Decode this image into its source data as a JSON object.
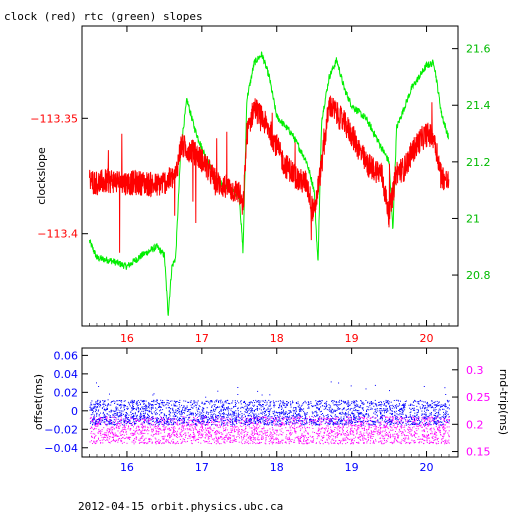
{
  "title": "clock (red) rtc (green) slopes",
  "footer": "2012-04-15  orbit.physics.ubc.ca",
  "colors": {
    "clock": "#ff0000",
    "rtc": "#00ee00",
    "offset": "#0000ff",
    "rndtrip": "#ff00ff",
    "axis": "#000000"
  },
  "chart_data": [
    {
      "type": "line",
      "title": "clock (red) rtc (green) slopes",
      "xlabel": "",
      "ylabel": "clockslope",
      "y2label": "",
      "xlim": [
        15.4,
        20.42
      ],
      "ylim": [
        -113.44,
        -113.31
      ],
      "y2lim": [
        20.62,
        21.68
      ],
      "x_ticks": [
        "16",
        "17",
        "18",
        "19",
        "20"
      ],
      "y_ticks": [
        "-113.35",
        "-113.4"
      ],
      "y2_ticks": [
        "20.8",
        "21",
        "21.2",
        "21.4",
        "21.6"
      ],
      "series": [
        {
          "axis": "left",
          "x": [
            15.5,
            15.6,
            15.8,
            16.0,
            16.2,
            16.4,
            16.55,
            16.65,
            16.72,
            16.8,
            16.9,
            17.0,
            17.2,
            17.4,
            17.5,
            17.55,
            17.6,
            17.7,
            17.8,
            17.9,
            18.0,
            18.1,
            18.2,
            18.3,
            18.4,
            18.5,
            18.55,
            18.6,
            18.7,
            18.8,
            18.9,
            19.0,
            19.2,
            19.4,
            19.5,
            19.6,
            19.7,
            19.8,
            19.9,
            20.0,
            20.1,
            20.2,
            20.3
          ],
          "values": [
            -113.377,
            -113.378,
            -113.377,
            -113.378,
            -113.378,
            -113.379,
            -113.377,
            -113.375,
            -113.362,
            -113.363,
            -113.365,
            -113.368,
            -113.378,
            -113.381,
            -113.382,
            -113.39,
            -113.357,
            -113.345,
            -113.35,
            -113.355,
            -113.362,
            -113.37,
            -113.373,
            -113.377,
            -113.378,
            -113.392,
            -113.38,
            -113.37,
            -113.344,
            -113.348,
            -113.352,
            -113.357,
            -113.37,
            -113.374,
            -113.392,
            -113.373,
            -113.372,
            -113.365,
            -113.36,
            -113.357,
            -113.358,
            -113.375,
            -113.378
          ]
        },
        {
          "axis": "right",
          "x": [
            15.5,
            15.6,
            15.8,
            16.0,
            16.2,
            16.4,
            16.5,
            16.55,
            16.6,
            16.65,
            16.72,
            16.8,
            16.9,
            17.0,
            17.2,
            17.4,
            17.5,
            17.55,
            17.6,
            17.7,
            17.8,
            17.9,
            18.0,
            18.2,
            18.4,
            18.5,
            18.55,
            18.6,
            18.7,
            18.8,
            18.9,
            19.0,
            19.2,
            19.4,
            19.5,
            19.55,
            19.6,
            19.8,
            20.0,
            20.1,
            20.2,
            20.3
          ],
          "values": [
            20.92,
            20.86,
            20.85,
            20.83,
            20.87,
            20.9,
            20.87,
            20.66,
            20.83,
            20.86,
            21.25,
            21.42,
            21.32,
            21.25,
            21.13,
            21.1,
            21.08,
            20.88,
            21.42,
            21.55,
            21.58,
            21.5,
            21.36,
            21.3,
            21.2,
            21.1,
            20.84,
            21.35,
            21.5,
            21.56,
            21.46,
            21.4,
            21.35,
            21.25,
            21.2,
            20.96,
            21.32,
            21.46,
            21.54,
            21.55,
            21.37,
            21.28
          ]
        }
      ]
    },
    {
      "type": "scatter",
      "xlabel": "",
      "ylabel": "offset(ms)",
      "y2label": "rnd-trip(ms)",
      "xlim": [
        15.4,
        20.42
      ],
      "ylim": [
        -0.05,
        0.068
      ],
      "y2lim": [
        0.14,
        0.34
      ],
      "x_ticks": [
        "16",
        "17",
        "18",
        "19",
        "20"
      ],
      "y_ticks": [
        "0.06",
        "0.04",
        "0.02",
        "0",
        "-0.02",
        "-0.04"
      ],
      "y2_ticks": [
        "0.3",
        "0.25",
        "0.2",
        "0.15"
      ],
      "series": [
        {
          "axis": "left",
          "x_range": [
            15.5,
            20.3
          ],
          "center": 0.0,
          "spread": [
            -0.015,
            0.012
          ]
        },
        {
          "axis": "right",
          "x_range": [
            15.5,
            20.3
          ],
          "center": 0.19,
          "spread": [
            0.165,
            0.215
          ]
        }
      ]
    }
  ]
}
